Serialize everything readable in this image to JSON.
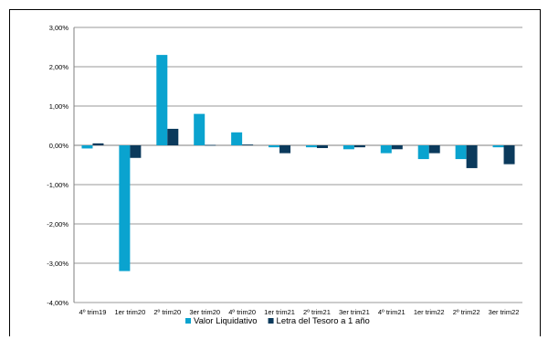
{
  "chart_data": {
    "type": "bar",
    "title": "",
    "xlabel": "",
    "ylabel": "",
    "ylim": [
      -4,
      3
    ],
    "ytick_step": 1,
    "grid": true,
    "legend_position": "bottom",
    "y_tick_labels": [
      "3,00%",
      "2,00%",
      "1,00%",
      "0,00%",
      "-1,00%",
      "-2,00%",
      "-3,00%",
      "-4,00%"
    ],
    "categories": [
      "4º trim19",
      "1er trim20",
      "2º trim20",
      "3er trim20",
      "4º trim20",
      "1er trim21",
      "2º trim21",
      "3er trim21",
      "4º trim21",
      "1er trim22",
      "2º trim22",
      "3er trim22"
    ],
    "series": [
      {
        "name": "Valor Liquidativo",
        "color": "#0AA3CF",
        "values": [
          -0.08,
          -3.2,
          2.3,
          0.8,
          0.33,
          -0.05,
          -0.05,
          -0.1,
          -0.2,
          -0.35,
          -0.35,
          -0.05
        ]
      },
      {
        "name": "Letra del Tesoro a 1 año",
        "color": "#0B3A5C",
        "values": [
          0.05,
          -0.32,
          0.42,
          0.01,
          0.02,
          -0.2,
          -0.07,
          -0.05,
          -0.1,
          -0.2,
          -0.58,
          -0.48
        ]
      }
    ]
  }
}
